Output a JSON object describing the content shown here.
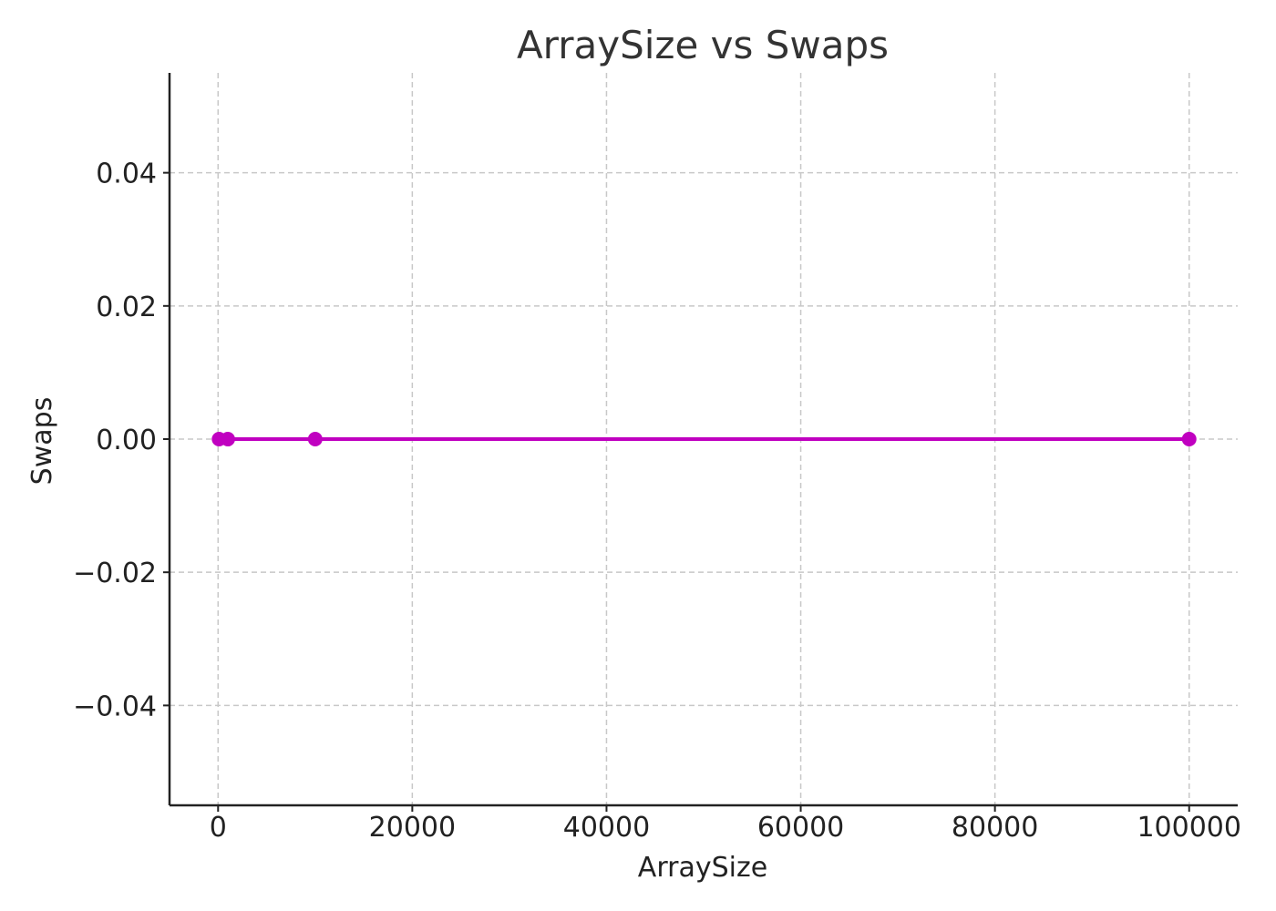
{
  "chart_data": {
    "type": "line",
    "title": "ArraySize vs Swaps",
    "xlabel": "ArraySize",
    "ylabel": "Swaps",
    "xlim": [
      -5000,
      105000
    ],
    "ylim": [
      -0.055,
      0.055
    ],
    "x_ticks": [
      0,
      20000,
      40000,
      60000,
      80000,
      100000
    ],
    "x_tick_labels": [
      "0",
      "20000",
      "40000",
      "60000",
      "80000",
      "100000"
    ],
    "y_ticks": [
      -0.04,
      -0.02,
      0.0,
      0.02,
      0.04
    ],
    "y_tick_labels": [
      "−0.04",
      "−0.02",
      "0.00",
      "0.02",
      "0.04"
    ],
    "grid": true,
    "legend": "none",
    "series": [
      {
        "x": [
          100,
          1000,
          10000,
          100000
        ],
        "y": [
          0,
          0,
          0,
          0
        ],
        "color": "#c000c0",
        "marker": "circle"
      }
    ]
  }
}
